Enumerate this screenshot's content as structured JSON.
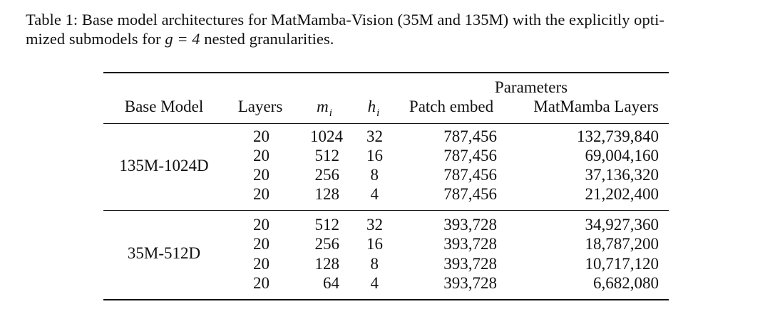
{
  "caption": {
    "line1": "Table 1: Base model architectures for MatMamba-Vision (35M and 135M) with the explicitly opti-",
    "line2_prefix": "mized submodels for ",
    "line2_math": "g = 4",
    "line2_suffix": " nested granularities."
  },
  "table": {
    "super_header": "Parameters",
    "headers": {
      "base_model": "Base Model",
      "layers": "Layers",
      "m_var": "m",
      "m_sub": "i",
      "h_var": "h",
      "h_sub": "i",
      "patch_embed": "Patch embed",
      "matmamba_layers": "MatMamba Layers"
    },
    "groups": [
      {
        "name": "135M-1024D",
        "rows": [
          [
            "20",
            "1024",
            "32",
            "787,456",
            "132,739,840"
          ],
          [
            "20",
            "512",
            "16",
            "787,456",
            "69,004,160"
          ],
          [
            "20",
            "256",
            "8",
            "787,456",
            "37,136,320"
          ],
          [
            "20",
            "128",
            "4",
            "787,456",
            "21,202,400"
          ]
        ]
      },
      {
        "name": "35M-512D",
        "rows": [
          [
            "20",
            "512",
            "32",
            "393,728",
            "34,927,360"
          ],
          [
            "20",
            "256",
            "16",
            "393,728",
            "18,787,200"
          ],
          [
            "20",
            "128",
            "8",
            "393,728",
            "10,717,120"
          ],
          [
            "20",
            "64",
            "4",
            "393,728",
            "6,682,080"
          ]
        ]
      }
    ]
  }
}
